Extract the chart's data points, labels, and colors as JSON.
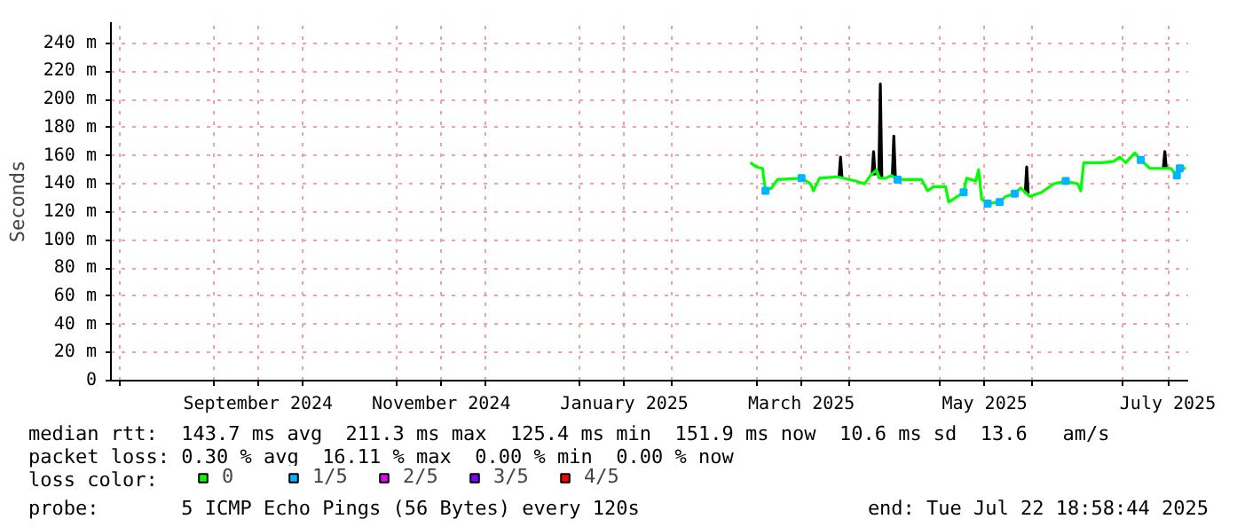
{
  "chart_data": {
    "type": "line",
    "ylabel": "Seconds",
    "legend_title": "loss color:",
    "legend": "bottom",
    "grid": true,
    "line_style": "solid",
    "xlim": [
      "2024-07-29",
      "2025-07-22T18:58"
    ],
    "xticks": [
      {
        "value": "2024-08-01",
        "label": null
      },
      {
        "value": "2024-09-01",
        "label": null
      },
      {
        "value": "2024-09-16",
        "label": "September 2024"
      },
      {
        "value": "2024-10-01",
        "label": null
      },
      {
        "value": "2024-11-01",
        "label": null
      },
      {
        "value": "2024-11-16",
        "label": "November 2024"
      },
      {
        "value": "2024-12-01",
        "label": null
      },
      {
        "value": "2025-01-01",
        "label": null
      },
      {
        "value": "2025-01-16",
        "label": "January 2025"
      },
      {
        "value": "2025-02-01",
        "label": null
      },
      {
        "value": "2025-03-01",
        "label": null
      },
      {
        "value": "2025-03-16",
        "label": "March 2025"
      },
      {
        "value": "2025-04-01",
        "label": null
      },
      {
        "value": "2025-05-01",
        "label": null
      },
      {
        "value": "2025-05-16",
        "label": "May 2025"
      },
      {
        "value": "2025-06-01",
        "label": null
      },
      {
        "value": "2025-07-01",
        "label": null
      },
      {
        "value": "2025-07-16",
        "label": "July 2025"
      }
    ],
    "ylim": [
      0,
      255
    ],
    "yticks": [
      0,
      {
        "value": 20,
        "label": "20 m"
      },
      {
        "value": 40,
        "label": "40 m"
      },
      {
        "value": 60,
        "label": "60 m"
      },
      {
        "value": 80,
        "label": "80 m"
      },
      {
        "value": 100,
        "label": "100 m"
      },
      {
        "value": 120,
        "label": "120 m"
      },
      {
        "value": 140,
        "label": "140 m"
      },
      {
        "value": 160,
        "label": "160 m"
      },
      {
        "value": 180,
        "label": "180 m"
      },
      {
        "value": 200,
        "label": "200 m"
      },
      {
        "value": 220,
        "label": "220 m"
      },
      {
        "value": 240,
        "label": "240 m"
      }
    ],
    "series": [
      {
        "color": "#000000",
        "x": [
          "2025-03-28T12:00",
          "2025-03-29T00:00",
          "2025-03-29T12:00",
          null,
          "2025-04-08T12:00",
          "2025-04-09T00:00",
          "2025-04-09T12:00",
          null,
          "2025-04-10T18:00",
          "2025-04-11T06:00",
          "2025-04-11T18:00",
          null,
          "2025-04-15T06:00",
          "2025-04-15T18:00",
          "2025-04-16T06:00",
          null,
          "2025-05-29T12:00",
          "2025-05-30T00:00",
          "2025-05-30T12:00",
          null,
          "2025-07-14T12:00",
          "2025-07-15T00:00",
          "2025-07-15T12:00"
        ],
        "values": [
          144,
          159,
          144,
          null,
          146,
          163,
          146,
          null,
          144,
          211,
          144,
          null,
          145,
          174,
          145,
          null,
          133,
          152,
          133,
          null,
          151,
          163,
          151
        ]
      },
      {
        "name": "0",
        "color": "#00ff00",
        "x": [
          "2025-02-27",
          "2025-03-01",
          "2025-03-03",
          "2025-03-04",
          "2025-03-06",
          "2025-03-08",
          "2025-03-16",
          "2025-03-19",
          "2025-03-20",
          "2025-03-22",
          "2025-03-28",
          "2025-04-03",
          "2025-04-06",
          "2025-04-08",
          "2025-04-10",
          "2025-04-11",
          "2025-04-13",
          "2025-04-15",
          "2025-04-17",
          "2025-04-25",
          "2025-04-27",
          "2025-04-29",
          "2025-05-03",
          "2025-05-04",
          "2025-05-07",
          "2025-05-09",
          "2025-05-10",
          "2025-05-13",
          "2025-05-14",
          "2025-05-15",
          "2025-05-17",
          "2025-05-21",
          "2025-05-23",
          "2025-05-26",
          "2025-05-28",
          "2025-05-30",
          "2025-05-31",
          "2025-06-04",
          "2025-06-08",
          "2025-06-12",
          "2025-06-16",
          "2025-06-17",
          "2025-06-18",
          "2025-06-24",
          "2025-06-28",
          "2025-06-30",
          "2025-07-02",
          "2025-07-05",
          "2025-07-07",
          "2025-07-10",
          "2025-07-14",
          "2025-07-17",
          "2025-07-19",
          "2025-07-20",
          "2025-07-22"
        ],
        "values": [
          155,
          152,
          151,
          135,
          137,
          143,
          144,
          140,
          135,
          144,
          145,
          142,
          140,
          146,
          150,
          144,
          144,
          146,
          143,
          143,
          135,
          138,
          138,
          127,
          131,
          134,
          144,
          142,
          150,
          129,
          126,
          127,
          131,
          133,
          137,
          133,
          131,
          134,
          140,
          142,
          140,
          135,
          155,
          155,
          156,
          159,
          155,
          162,
          157,
          151,
          151,
          151,
          146,
          151,
          151
        ]
      },
      {
        "name": "1/5",
        "color": "#00b4ff",
        "type": "scatter",
        "marker": "square",
        "x": [
          "2025-03-04",
          "2025-03-16",
          "2025-04-17",
          "2025-05-09",
          "2025-05-17",
          "2025-05-21",
          "2025-05-26",
          "2025-06-12",
          "2025-07-07",
          "2025-07-19",
          "2025-07-20"
        ],
        "values": [
          135,
          144,
          143,
          134,
          126,
          127,
          133,
          142,
          157,
          146,
          151
        ]
      },
      {
        "name": "2/5",
        "color": "#e600ff"
      },
      {
        "name": "3/5",
        "color": "#7a00ff"
      },
      {
        "name": "4/5",
        "color": "#ff0000"
      }
    ],
    "annotations": [
      "median rtt:  143.7 ms avg  211.3 ms max  125.4 ms min  151.9 ms now  10.6 ms sd  13.6   am/s",
      "packet loss: 0.30 % avg  16.11 % max  0.00 % min  0.00 % now",
      "probe:       5 ICMP Echo Pings (56 Bytes) every 120s",
      "end: Tue Jul 22 18:58:44 2025"
    ]
  }
}
